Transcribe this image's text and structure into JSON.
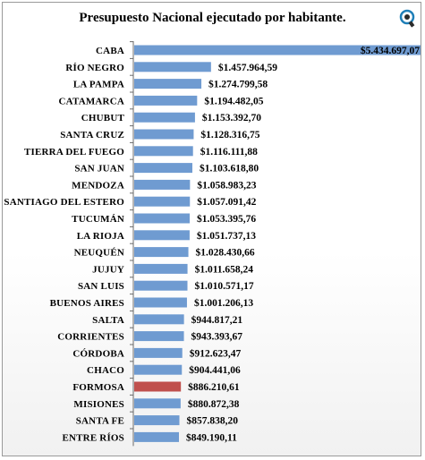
{
  "chart_data": {
    "type": "bar",
    "orientation": "horizontal",
    "title": "Presupuesto Nacional ejecutado por habitante.",
    "categories": [
      "CABA",
      "RÍO NEGRO",
      "LA PAMPA",
      "CATAMARCA",
      "CHUBUT",
      "SANTA CRUZ",
      "TIERRA DEL FUEGO",
      "SAN JUAN",
      "MENDOZA",
      "SANTIAGO DEL ESTERO",
      "TUCUMÁN",
      "LA RIOJA",
      "NEUQUÉN",
      "JUJUY",
      "SAN LUIS",
      "BUENOS AIRES",
      "SALTA",
      "CORRIENTES",
      "CÓRDOBA",
      "CHACO",
      "FORMOSA",
      "MISIONES",
      "SANTA FE",
      "ENTRE RÍOS"
    ],
    "values": [
      5434697.07,
      1457964.59,
      1274799.58,
      1194482.05,
      1153392.7,
      1128316.75,
      1116111.88,
      1103618.8,
      1058983.23,
      1057091.42,
      1053395.76,
      1051737.13,
      1028430.66,
      1011658.24,
      1010571.17,
      1001206.13,
      944817.21,
      943393.67,
      912623.47,
      904441.06,
      886210.61,
      880872.38,
      857838.2,
      849190.11
    ],
    "labels": [
      "$5.434.697,07",
      "$1.457.964,59",
      "$1.274.799,58",
      "$1.194.482,05",
      "$1.153.392,70",
      "$1.128.316,75",
      "$1.116.111,88",
      "$1.103.618,80",
      "$1.058.983,23",
      "$1.057.091,42",
      "$1.053.395,76",
      "$1.051.737,13",
      "$1.028.430,66",
      "$1.011.658,24",
      "$1.010.571,17",
      "$1.001.206,13",
      "$944.817,21",
      "$943.393,67",
      "$912.623,47",
      "$904.441,06",
      "$886.210,61",
      "$880.872,38",
      "$857.838,20",
      "$849.190,11"
    ],
    "highlight": "FORMOSA",
    "colors": {
      "bar": "#6f9bd1",
      "highlight": "#c0504d",
      "axis": "#6b6b6b"
    },
    "grid": false,
    "legend": "none"
  },
  "logo": {
    "icon": "circular-logo-icon"
  }
}
